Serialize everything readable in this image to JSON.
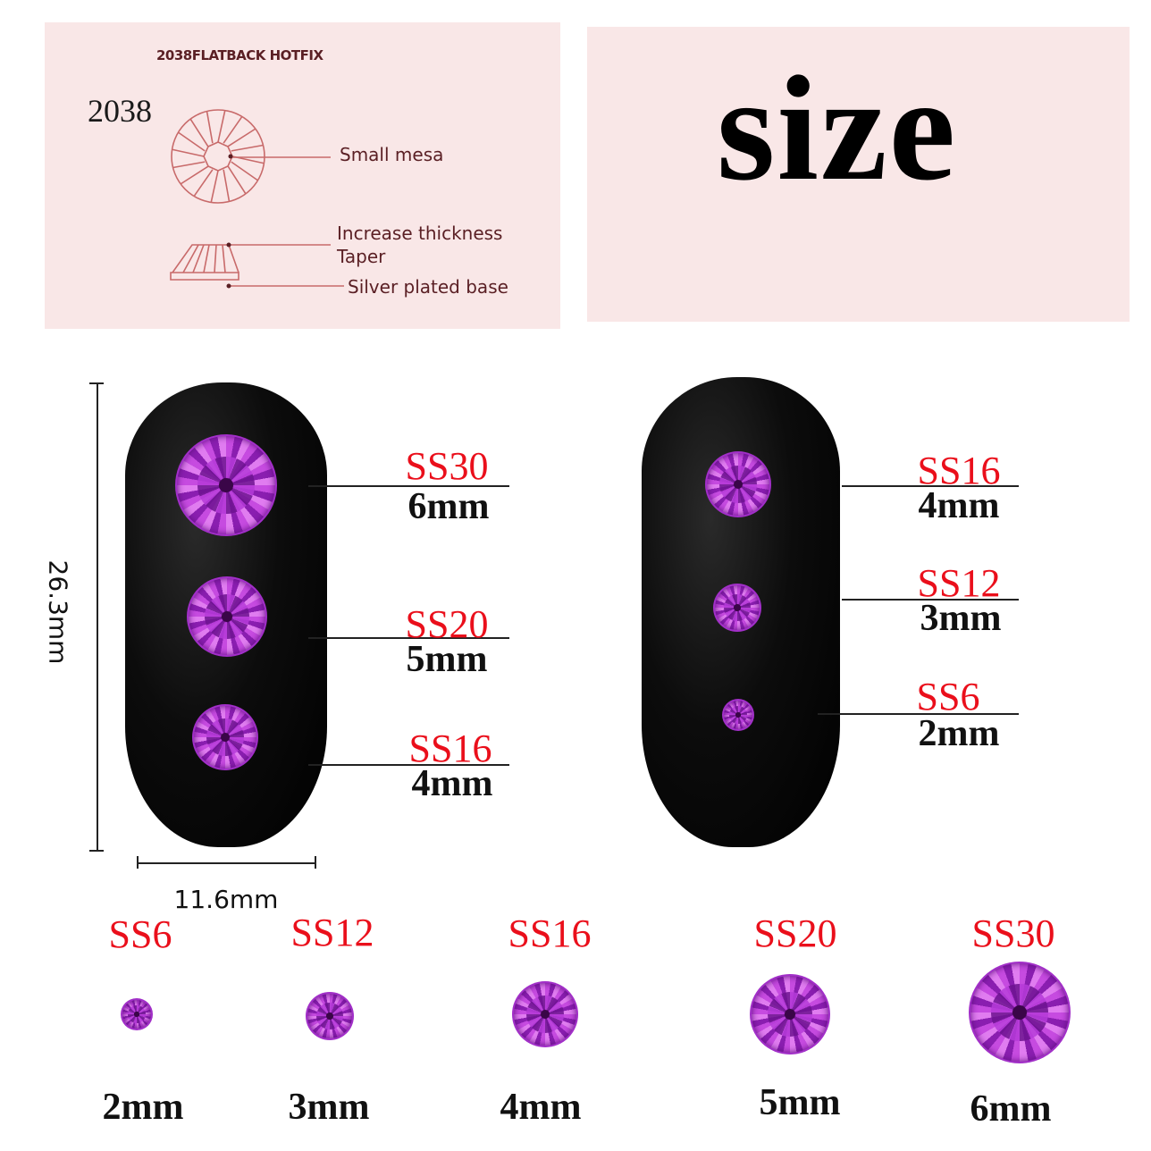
{
  "diagram_panel": {
    "heading": "2038FLATBACK HOTFIX",
    "model": "2038",
    "callouts": [
      "Small mesa",
      "Increase thickness",
      "Taper",
      "Silver plated base"
    ],
    "line_color": "#c86a6a"
  },
  "title": "size",
  "dimensions": {
    "height": "26.3mm",
    "width": "11.6mm"
  },
  "left_nail": [
    {
      "size": "SS30",
      "mm": "6mm"
    },
    {
      "size": "SS20",
      "mm": "5mm"
    },
    {
      "size": "SS16",
      "mm": "4mm"
    }
  ],
  "right_nail": [
    {
      "size": "SS16",
      "mm": "4mm"
    },
    {
      "size": "SS12",
      "mm": "3mm"
    },
    {
      "size": "SS6",
      "mm": "2mm"
    }
  ],
  "size_row": [
    {
      "size": "SS6",
      "mm": "2mm"
    },
    {
      "size": "SS12",
      "mm": "3mm"
    },
    {
      "size": "SS16",
      "mm": "4mm"
    },
    {
      "size": "SS20",
      "mm": "5mm"
    },
    {
      "size": "SS30",
      "mm": "6mm"
    }
  ],
  "colors": {
    "label_red": "#ea0f1b",
    "gem_purple": "#b02fd0",
    "panel_pink": "#f9e7e7"
  }
}
